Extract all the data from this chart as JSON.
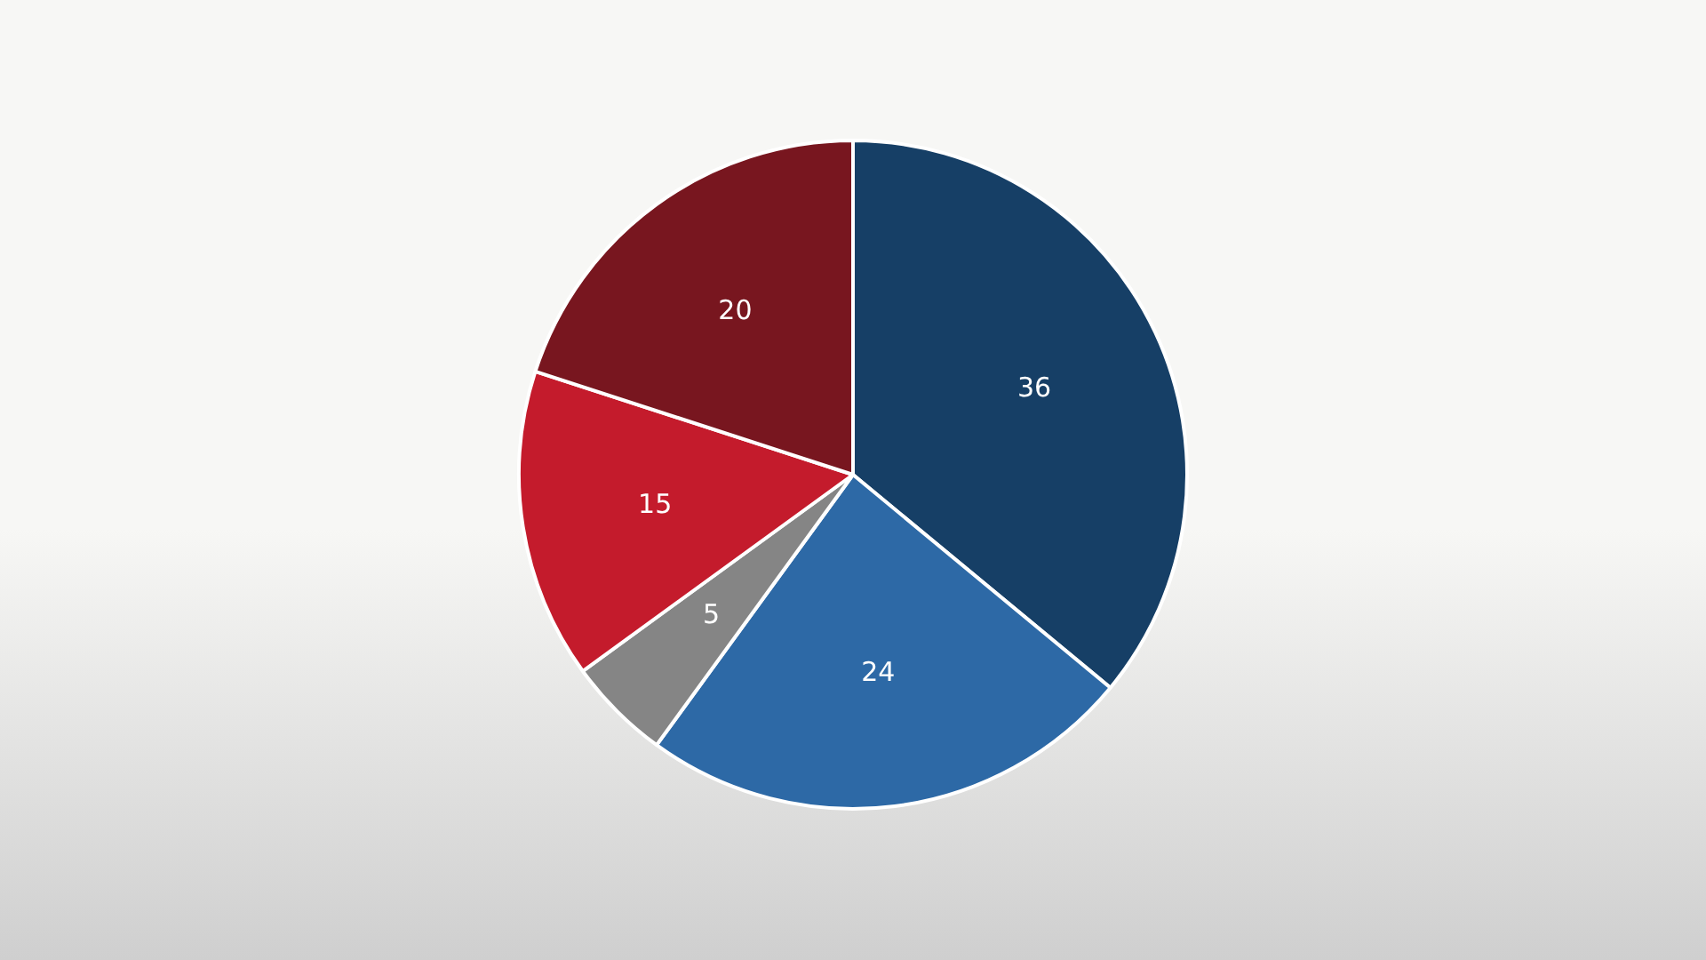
{
  "chart_data": {
    "type": "pie",
    "categories": [
      null,
      null,
      null,
      null,
      null
    ],
    "values": [
      36,
      24,
      5,
      15,
      20
    ],
    "colors": [
      "#163f66",
      "#2d69a6",
      "#858585",
      "#c41b2c",
      "#78161f"
    ],
    "data_labels": true,
    "legend": false
  }
}
